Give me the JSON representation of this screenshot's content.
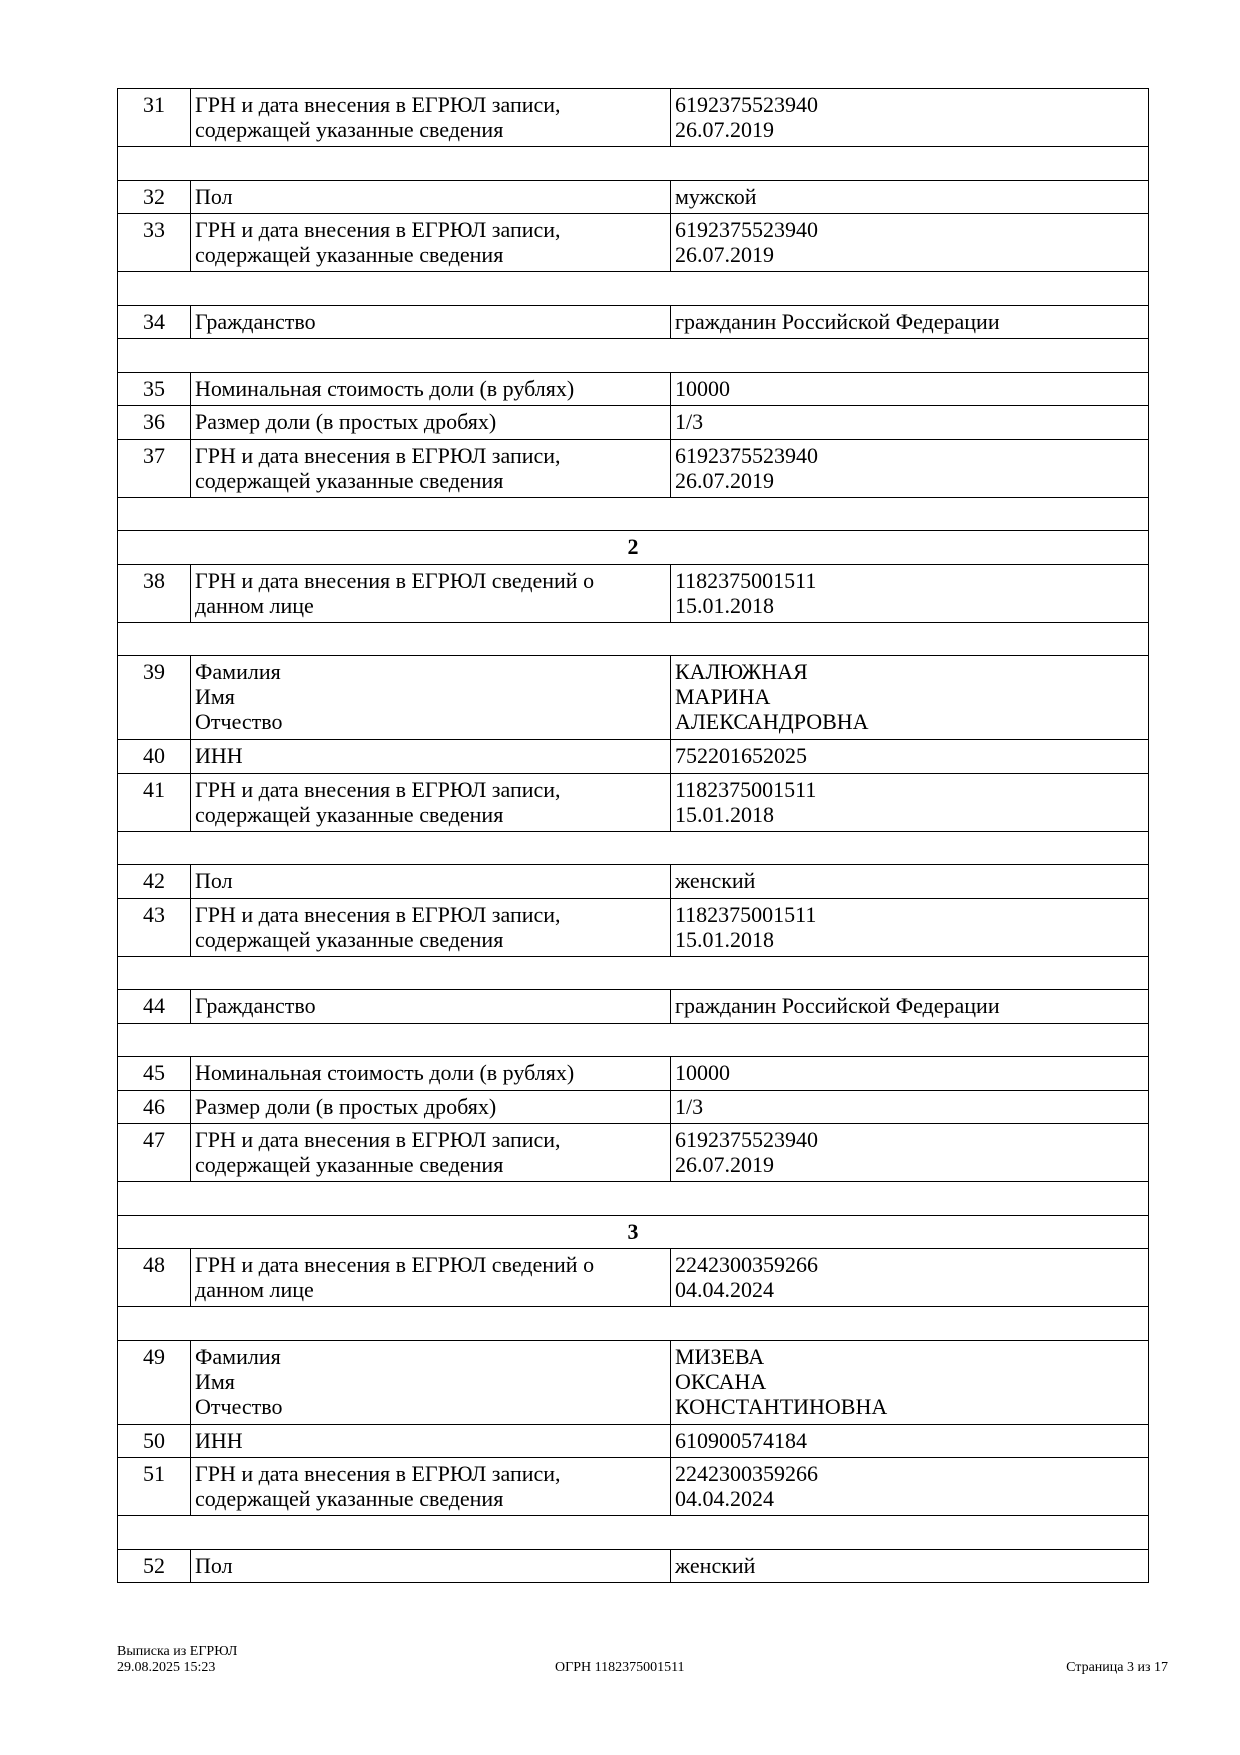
{
  "rows": [
    {
      "type": "row",
      "num": "31",
      "label": [
        "ГРН и дата внесения в ЕГРЮЛ записи,",
        "содержащей указанные сведения"
      ],
      "value": [
        "6192375523940",
        "26.07.2019"
      ]
    },
    {
      "type": "empty"
    },
    {
      "type": "row",
      "num": "32",
      "label": [
        "Пол"
      ],
      "value": [
        "мужской"
      ]
    },
    {
      "type": "row",
      "num": "33",
      "label": [
        "ГРН и дата внесения в ЕГРЮЛ записи,",
        "содержащей указанные сведения"
      ],
      "value": [
        "6192375523940",
        "26.07.2019"
      ]
    },
    {
      "type": "empty"
    },
    {
      "type": "row",
      "num": "34",
      "label": [
        "Гражданство"
      ],
      "value": [
        "гражданин Российской Федерации"
      ]
    },
    {
      "type": "empty"
    },
    {
      "type": "row",
      "num": "35",
      "label": [
        "Номинальная стоимость доли (в рублях)"
      ],
      "value": [
        "10000"
      ]
    },
    {
      "type": "row",
      "num": "36",
      "label": [
        "Размер доли (в простых дробях)"
      ],
      "value": [
        "1/3"
      ]
    },
    {
      "type": "row",
      "num": "37",
      "label": [
        "ГРН и дата внесения в ЕГРЮЛ записи,",
        "содержащей указанные сведения"
      ],
      "value": [
        "6192375523940",
        "26.07.2019"
      ]
    },
    {
      "type": "empty"
    },
    {
      "type": "section",
      "title": "2"
    },
    {
      "type": "row",
      "num": "38",
      "label": [
        "ГРН и дата внесения в ЕГРЮЛ сведений о",
        "данном лице"
      ],
      "value": [
        "1182375001511",
        "15.01.2018"
      ]
    },
    {
      "type": "empty"
    },
    {
      "type": "row",
      "num": "39",
      "label": [
        "Фамилия",
        "Имя",
        "Отчество"
      ],
      "value": [
        "КАЛЮЖНАЯ",
        "МАРИНА",
        "АЛЕКСАНДРОВНА"
      ]
    },
    {
      "type": "row",
      "num": "40",
      "label": [
        "ИНН"
      ],
      "value": [
        "752201652025"
      ]
    },
    {
      "type": "row",
      "num": "41",
      "label": [
        "ГРН и дата внесения в ЕГРЮЛ записи,",
        "содержащей указанные сведения"
      ],
      "value": [
        "1182375001511",
        "15.01.2018"
      ]
    },
    {
      "type": "empty"
    },
    {
      "type": "row",
      "num": "42",
      "label": [
        "Пол"
      ],
      "value": [
        "женский"
      ]
    },
    {
      "type": "row",
      "num": "43",
      "label": [
        "ГРН и дата внесения в ЕГРЮЛ записи,",
        "содержащей указанные сведения"
      ],
      "value": [
        "1182375001511",
        "15.01.2018"
      ]
    },
    {
      "type": "empty"
    },
    {
      "type": "row",
      "num": "44",
      "label": [
        "Гражданство"
      ],
      "value": [
        "гражданин Российской Федерации"
      ]
    },
    {
      "type": "empty"
    },
    {
      "type": "row",
      "num": "45",
      "label": [
        "Номинальная стоимость доли (в рублях)"
      ],
      "value": [
        "10000"
      ]
    },
    {
      "type": "row",
      "num": "46",
      "label": [
        "Размер доли (в простых дробях)"
      ],
      "value": [
        "1/3"
      ]
    },
    {
      "type": "row",
      "num": "47",
      "label": [
        "ГРН и дата внесения в ЕГРЮЛ записи,",
        "содержащей указанные сведения"
      ],
      "value": [
        "6192375523940",
        "26.07.2019"
      ]
    },
    {
      "type": "empty"
    },
    {
      "type": "section",
      "title": "3"
    },
    {
      "type": "row",
      "num": "48",
      "label": [
        "ГРН и дата внесения в ЕГРЮЛ сведений о",
        "данном лице"
      ],
      "value": [
        "2242300359266",
        "04.04.2024"
      ]
    },
    {
      "type": "empty"
    },
    {
      "type": "row",
      "num": "49",
      "label": [
        "Фамилия",
        "Имя",
        "Отчество"
      ],
      "value": [
        "МИЗЕВА",
        "ОКСАНА",
        "КОНСТАНТИНОВНА"
      ]
    },
    {
      "type": "row",
      "num": "50",
      "label": [
        "ИНН"
      ],
      "value": [
        "610900574184"
      ]
    },
    {
      "type": "row",
      "num": "51",
      "label": [
        "ГРН и дата внесения в ЕГРЮЛ записи,",
        "содержащей указанные сведения"
      ],
      "value": [
        "2242300359266",
        "04.04.2024"
      ]
    },
    {
      "type": "empty"
    },
    {
      "type": "row",
      "num": "52",
      "label": [
        "Пол"
      ],
      "value": [
        "женский"
      ]
    }
  ],
  "footer": {
    "doc_title": "Выписка из ЕГРЮЛ",
    "datetime": "29.08.2025 15:23",
    "ogrn": "ОГРН 1182375001511",
    "page": "Страница 3 из 17"
  }
}
